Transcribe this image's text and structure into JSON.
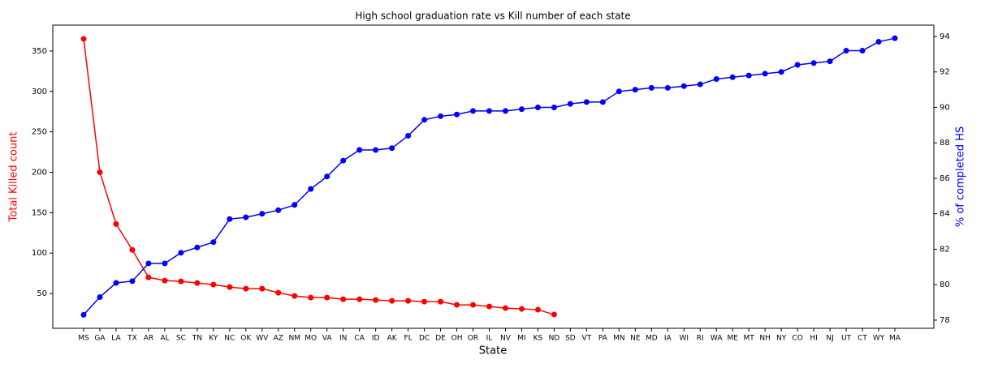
{
  "chart_data": {
    "type": "line",
    "title": "High school graduation rate vs Kill number of each state",
    "xlabel": "State",
    "ylabel": "Total Killed count",
    "y2label": "% of completed HS",
    "categories": [
      "MS",
      "GA",
      "LA",
      "TX",
      "AR",
      "AL",
      "SC",
      "TN",
      "KY",
      "NC",
      "OK",
      "WV",
      "AZ",
      "NM",
      "MO",
      "VA",
      "IN",
      "CA",
      "ID",
      "AK",
      "FL",
      "DC",
      "DE",
      "OH",
      "OR",
      "IL",
      "NV",
      "MI",
      "KS",
      "ND",
      "SD",
      "VT",
      "PA",
      "MN",
      "NE",
      "MD",
      "IA",
      "WI",
      "RI",
      "WA",
      "ME",
      "MT",
      "NH",
      "NY",
      "CO",
      "HI",
      "NJ",
      "UT",
      "CT",
      "WY",
      "MA"
    ],
    "series": [
      {
        "name": "Total Killed count",
        "color": "#ff0000",
        "axis": "y",
        "values": [
          365,
          200,
          136,
          104,
          70,
          66,
          65,
          63,
          61,
          58,
          56,
          56,
          51,
          47,
          45,
          45,
          43,
          43,
          42,
          41,
          41,
          40,
          40,
          36,
          36,
          34,
          32,
          31,
          30,
          24,
          null,
          null,
          null,
          null,
          null,
          null,
          null,
          null,
          null,
          null,
          null,
          null,
          null,
          null,
          null,
          null,
          null,
          null,
          null,
          null,
          null
        ]
      },
      {
        "name": "% of completed HS",
        "color": "#0000ff",
        "axis": "y2",
        "values": [
          78.3,
          79.3,
          80.1,
          80.2,
          81.2,
          81.2,
          81.8,
          82.1,
          82.4,
          83.7,
          83.8,
          84.0,
          84.2,
          84.5,
          85.4,
          86.1,
          87.0,
          87.6,
          87.6,
          87.7,
          88.4,
          89.3,
          89.5,
          89.6,
          89.8,
          89.8,
          89.8,
          89.9,
          90.0,
          90.0,
          90.2,
          90.3,
          90.3,
          90.9,
          91.0,
          91.1,
          91.1,
          91.2,
          91.3,
          91.6,
          91.7,
          91.8,
          91.9,
          92.0,
          92.4,
          92.5,
          92.6,
          93.2,
          93.2,
          93.7,
          93.9
        ]
      }
    ],
    "ylim": [
      7,
      382
    ],
    "yticks": [
      50,
      100,
      150,
      200,
      250,
      300,
      350
    ],
    "y2lim": [
      77.54,
      94.64
    ],
    "y2ticks": [
      78,
      80,
      82,
      84,
      86,
      88,
      90,
      92,
      94
    ]
  }
}
